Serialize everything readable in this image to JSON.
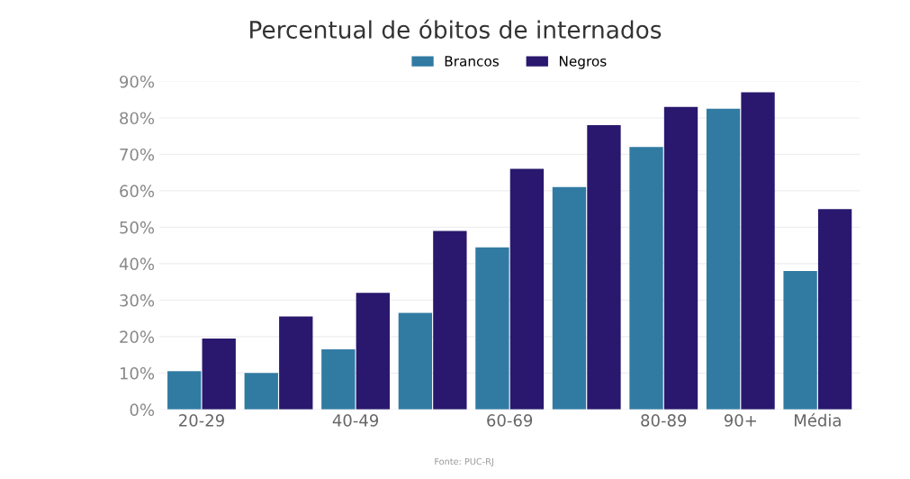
{
  "chart_data": {
    "type": "bar",
    "title": "Percentual de óbitos de internados",
    "categories": [
      "20-29",
      null,
      "40-49",
      null,
      "60-69",
      null,
      "80-89",
      "90+",
      "Média"
    ],
    "series": [
      {
        "name": "Brancos",
        "color": "#317ba3",
        "values": [
          10.5,
          10,
          16.5,
          26.5,
          44.5,
          61,
          72,
          82.5,
          38
        ]
      },
      {
        "name": "Negros",
        "color": "#29186e",
        "values": [
          19.5,
          25.5,
          32,
          49,
          66,
          78,
          83,
          87,
          55
        ]
      }
    ],
    "ylim": [
      0,
      90
    ],
    "yticks": [
      {
        "value": 0,
        "label": "0%"
      },
      {
        "value": 10,
        "label": "10%"
      },
      {
        "value": 20,
        "label": "20%"
      },
      {
        "value": 30,
        "label": "30%"
      },
      {
        "value": 40,
        "label": "40%"
      },
      {
        "value": 50,
        "label": "50%"
      },
      {
        "value": 60,
        "label": "60%"
      },
      {
        "value": 70,
        "label": "70%"
      },
      {
        "value": 80,
        "label": "80%"
      },
      {
        "value": 90,
        "label": "90%"
      }
    ],
    "grid": "y",
    "legend": "top",
    "annotations": [
      "Fonte: PUC-RJ"
    ]
  }
}
